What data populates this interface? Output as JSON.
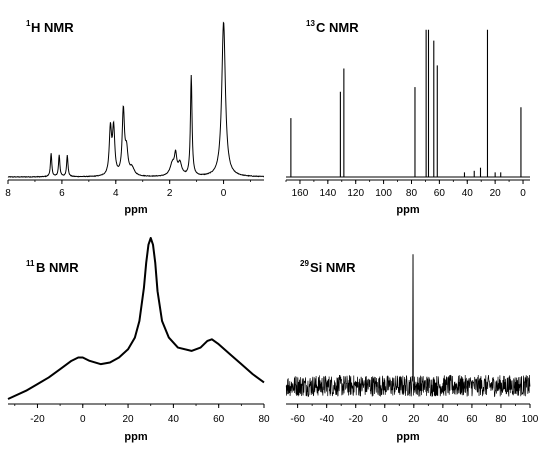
{
  "chart_data": [
    {
      "type": "line",
      "panel": "top-left",
      "title_sup": "1",
      "title": "H NMR",
      "xlabel": "ppm",
      "xlim": [
        8,
        -1.5
      ],
      "x_ticks": [
        8,
        6,
        4,
        2,
        0
      ],
      "series": [
        {
          "peaks": [
            {
              "ppm": 6.4,
              "height": 0.15,
              "width": 0.03
            },
            {
              "ppm": 6.1,
              "height": 0.14,
              "width": 0.03
            },
            {
              "ppm": 5.8,
              "height": 0.14,
              "width": 0.03
            },
            {
              "ppm": 4.2,
              "height": 0.3,
              "width": 0.05
            },
            {
              "ppm": 4.08,
              "height": 0.3,
              "width": 0.05
            },
            {
              "ppm": 3.72,
              "height": 0.42,
              "width": 0.05
            },
            {
              "ppm": 3.6,
              "height": 0.15,
              "width": 0.06
            },
            {
              "ppm": 3.4,
              "height": 0.05,
              "width": 0.1
            },
            {
              "ppm": 1.9,
              "height": 0.08,
              "width": 0.1
            },
            {
              "ppm": 1.78,
              "height": 0.12,
              "width": 0.05
            },
            {
              "ppm": 1.62,
              "height": 0.08,
              "width": 0.08
            },
            {
              "ppm": 1.2,
              "height": 0.65,
              "width": 0.035
            },
            {
              "ppm": 0.0,
              "height": 1.0,
              "width": 0.08
            }
          ]
        }
      ]
    },
    {
      "type": "line",
      "panel": "top-right",
      "title_sup": "13",
      "title": "C NMR",
      "xlabel": "ppm",
      "xlim": [
        170,
        -5
      ],
      "x_ticks": [
        160,
        140,
        120,
        100,
        80,
        60,
        40,
        20,
        0
      ],
      "series": [
        {
          "peaks": [
            {
              "ppm": 166.5,
              "height": 0.38
            },
            {
              "ppm": 131.0,
              "height": 0.55
            },
            {
              "ppm": 128.5,
              "height": 0.7
            },
            {
              "ppm": 77.5,
              "height": 0.58
            },
            {
              "ppm": 69.5,
              "height": 0.95
            },
            {
              "ppm": 67.8,
              "height": 0.95
            },
            {
              "ppm": 64.0,
              "height": 0.88
            },
            {
              "ppm": 61.5,
              "height": 0.72
            },
            {
              "ppm": 25.5,
              "height": 0.95
            },
            {
              "ppm": 1.5,
              "height": 0.45
            },
            {
              "ppm": 42.0,
              "height": 0.03
            },
            {
              "ppm": 35.0,
              "height": 0.04
            },
            {
              "ppm": 30.5,
              "height": 0.06
            },
            {
              "ppm": 20.0,
              "height": 0.03
            },
            {
              "ppm": 16.0,
              "height": 0.03
            }
          ]
        }
      ]
    },
    {
      "type": "line",
      "panel": "bottom-left",
      "title_sup": "11",
      "title": "B NMR",
      "xlabel": "ppm",
      "xlim": [
        -33,
        80
      ],
      "x_ticks": [
        -20,
        0,
        20,
        40,
        60,
        80
      ],
      "series": [
        {
          "x": [
            -33,
            -25,
            -20,
            -15,
            -10,
            -5,
            -2,
            0,
            3,
            8,
            12,
            16,
            20,
            23,
            25,
            27,
            28,
            29,
            30,
            31,
            32,
            33,
            35,
            38,
            42,
            48,
            52,
            55,
            57,
            60,
            65,
            70,
            75,
            80
          ],
          "y": [
            0.03,
            0.08,
            0.12,
            0.16,
            0.21,
            0.26,
            0.28,
            0.28,
            0.26,
            0.24,
            0.25,
            0.28,
            0.33,
            0.4,
            0.5,
            0.7,
            0.85,
            0.96,
            1.0,
            0.96,
            0.85,
            0.68,
            0.5,
            0.4,
            0.34,
            0.32,
            0.34,
            0.38,
            0.39,
            0.36,
            0.3,
            0.24,
            0.18,
            0.13
          ]
        }
      ]
    },
    {
      "type": "line",
      "panel": "bottom-right",
      "title_sup": "29",
      "title": "Si NMR",
      "xlabel": "ppm",
      "xlim": [
        -68,
        100
      ],
      "x_ticks": [
        -60,
        -40,
        -20,
        0,
        20,
        40,
        60,
        80,
        100
      ],
      "series": [
        {
          "noise_level": 0.13,
          "baseline": 0.11,
          "peaks": [
            {
              "ppm": 19.5,
              "height": 0.9
            }
          ]
        }
      ]
    }
  ]
}
